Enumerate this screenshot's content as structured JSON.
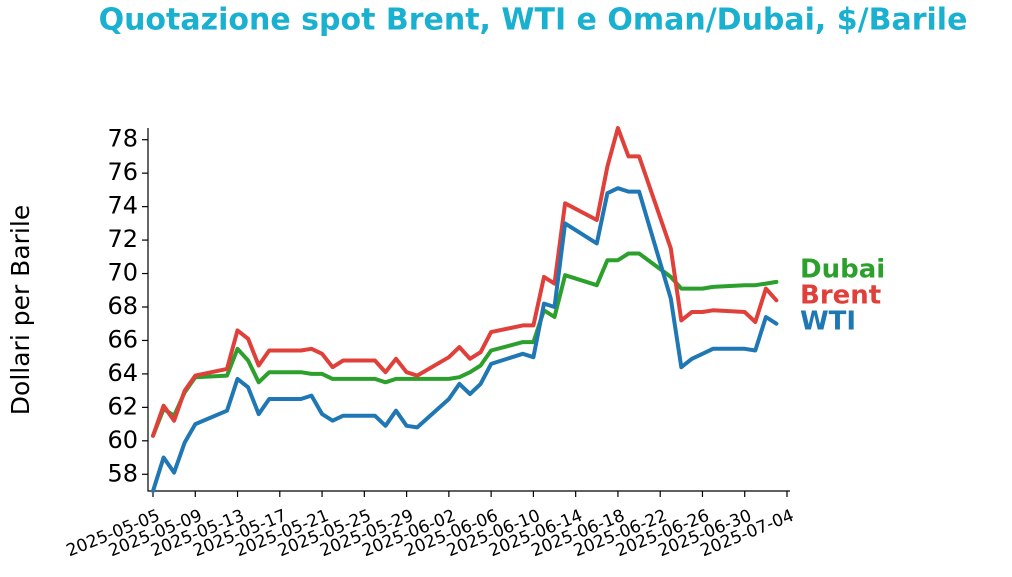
{
  "chart_data": {
    "type": "line",
    "title": "Quotazione spot Brent, WTI e Oman/Dubai, $/Barile",
    "y_label": "Dollari per Barile",
    "x": [
      "2025-05-05",
      "2025-05-06",
      "2025-05-07",
      "2025-05-08",
      "2025-05-09",
      "2025-05-12",
      "2025-05-13",
      "2025-05-14",
      "2025-05-15",
      "2025-05-16",
      "2025-05-19",
      "2025-05-20",
      "2025-05-21",
      "2025-05-22",
      "2025-05-23",
      "2025-05-26",
      "2025-05-27",
      "2025-05-28",
      "2025-05-29",
      "2025-05-30",
      "2025-06-02",
      "2025-06-03",
      "2025-06-04",
      "2025-06-05",
      "2025-06-06",
      "2025-06-09",
      "2025-06-10",
      "2025-06-11",
      "2025-06-12",
      "2025-06-13",
      "2025-06-16",
      "2025-06-17",
      "2025-06-18",
      "2025-06-19",
      "2025-06-20",
      "2025-06-23",
      "2025-06-24",
      "2025-06-25",
      "2025-06-26",
      "2025-06-27",
      "2025-06-30",
      "2025-07-01",
      "2025-07-02",
      "2025-07-03"
    ],
    "series": [
      {
        "name": "Dubai",
        "color": "#2ca02c",
        "values": [
          60.3,
          61.9,
          61.5,
          62.9,
          63.8,
          63.9,
          65.5,
          64.8,
          63.5,
          64.1,
          64.1,
          64.0,
          64.0,
          63.7,
          63.7,
          63.7,
          63.5,
          63.7,
          63.7,
          63.7,
          63.7,
          63.8,
          64.1,
          64.5,
          65.4,
          65.9,
          65.9,
          67.8,
          67.4,
          69.9,
          69.3,
          70.8,
          70.8,
          71.2,
          71.2,
          69.8,
          69.1,
          69.1,
          69.1,
          69.2,
          69.3,
          69.3,
          69.4,
          69.5
        ]
      },
      {
        "name": "Brent",
        "color": "#e0403a",
        "values": [
          60.3,
          62.1,
          61.2,
          63.0,
          63.9,
          64.3,
          66.6,
          66.1,
          64.5,
          65.4,
          65.4,
          65.5,
          65.2,
          64.4,
          64.8,
          64.8,
          64.1,
          64.9,
          64.1,
          63.9,
          65.0,
          65.6,
          64.9,
          65.3,
          66.5,
          66.9,
          66.9,
          69.8,
          69.4,
          74.2,
          73.2,
          76.4,
          78.7,
          77.0,
          77.0,
          71.5,
          67.2,
          67.7,
          67.7,
          67.8,
          67.7,
          67.1,
          69.1,
          68.4
        ]
      },
      {
        "name": "WTI",
        "color": "#1f77b4",
        "values": [
          57.0,
          59.0,
          58.1,
          59.9,
          61.0,
          61.8,
          63.7,
          63.2,
          61.6,
          62.5,
          62.5,
          62.7,
          61.6,
          61.2,
          61.5,
          61.5,
          60.9,
          61.8,
          60.9,
          60.8,
          62.5,
          63.4,
          62.8,
          63.4,
          64.6,
          65.2,
          65.0,
          68.2,
          68.0,
          73.0,
          71.8,
          74.8,
          75.1,
          74.9,
          74.9,
          68.5,
          64.4,
          64.9,
          65.2,
          65.5,
          65.5,
          65.4,
          67.4,
          67.0
        ]
      }
    ],
    "xlim": [
      "2025-05-05",
      "2025-07-04"
    ],
    "xticks": [
      "2025-05-05",
      "2025-05-09",
      "2025-05-13",
      "2025-05-17",
      "2025-05-21",
      "2025-05-25",
      "2025-05-29",
      "2025-06-02",
      "2025-06-06",
      "2025-06-10",
      "2025-06-14",
      "2025-06-18",
      "2025-06-22",
      "2025-06-26",
      "2025-06-30",
      "2025-07-04"
    ],
    "ylim": [
      57,
      78.7
    ],
    "yticks": [
      58,
      60,
      62,
      64,
      66,
      68,
      70,
      72,
      74,
      76,
      78
    ],
    "title_color": "#1ab0d0"
  }
}
